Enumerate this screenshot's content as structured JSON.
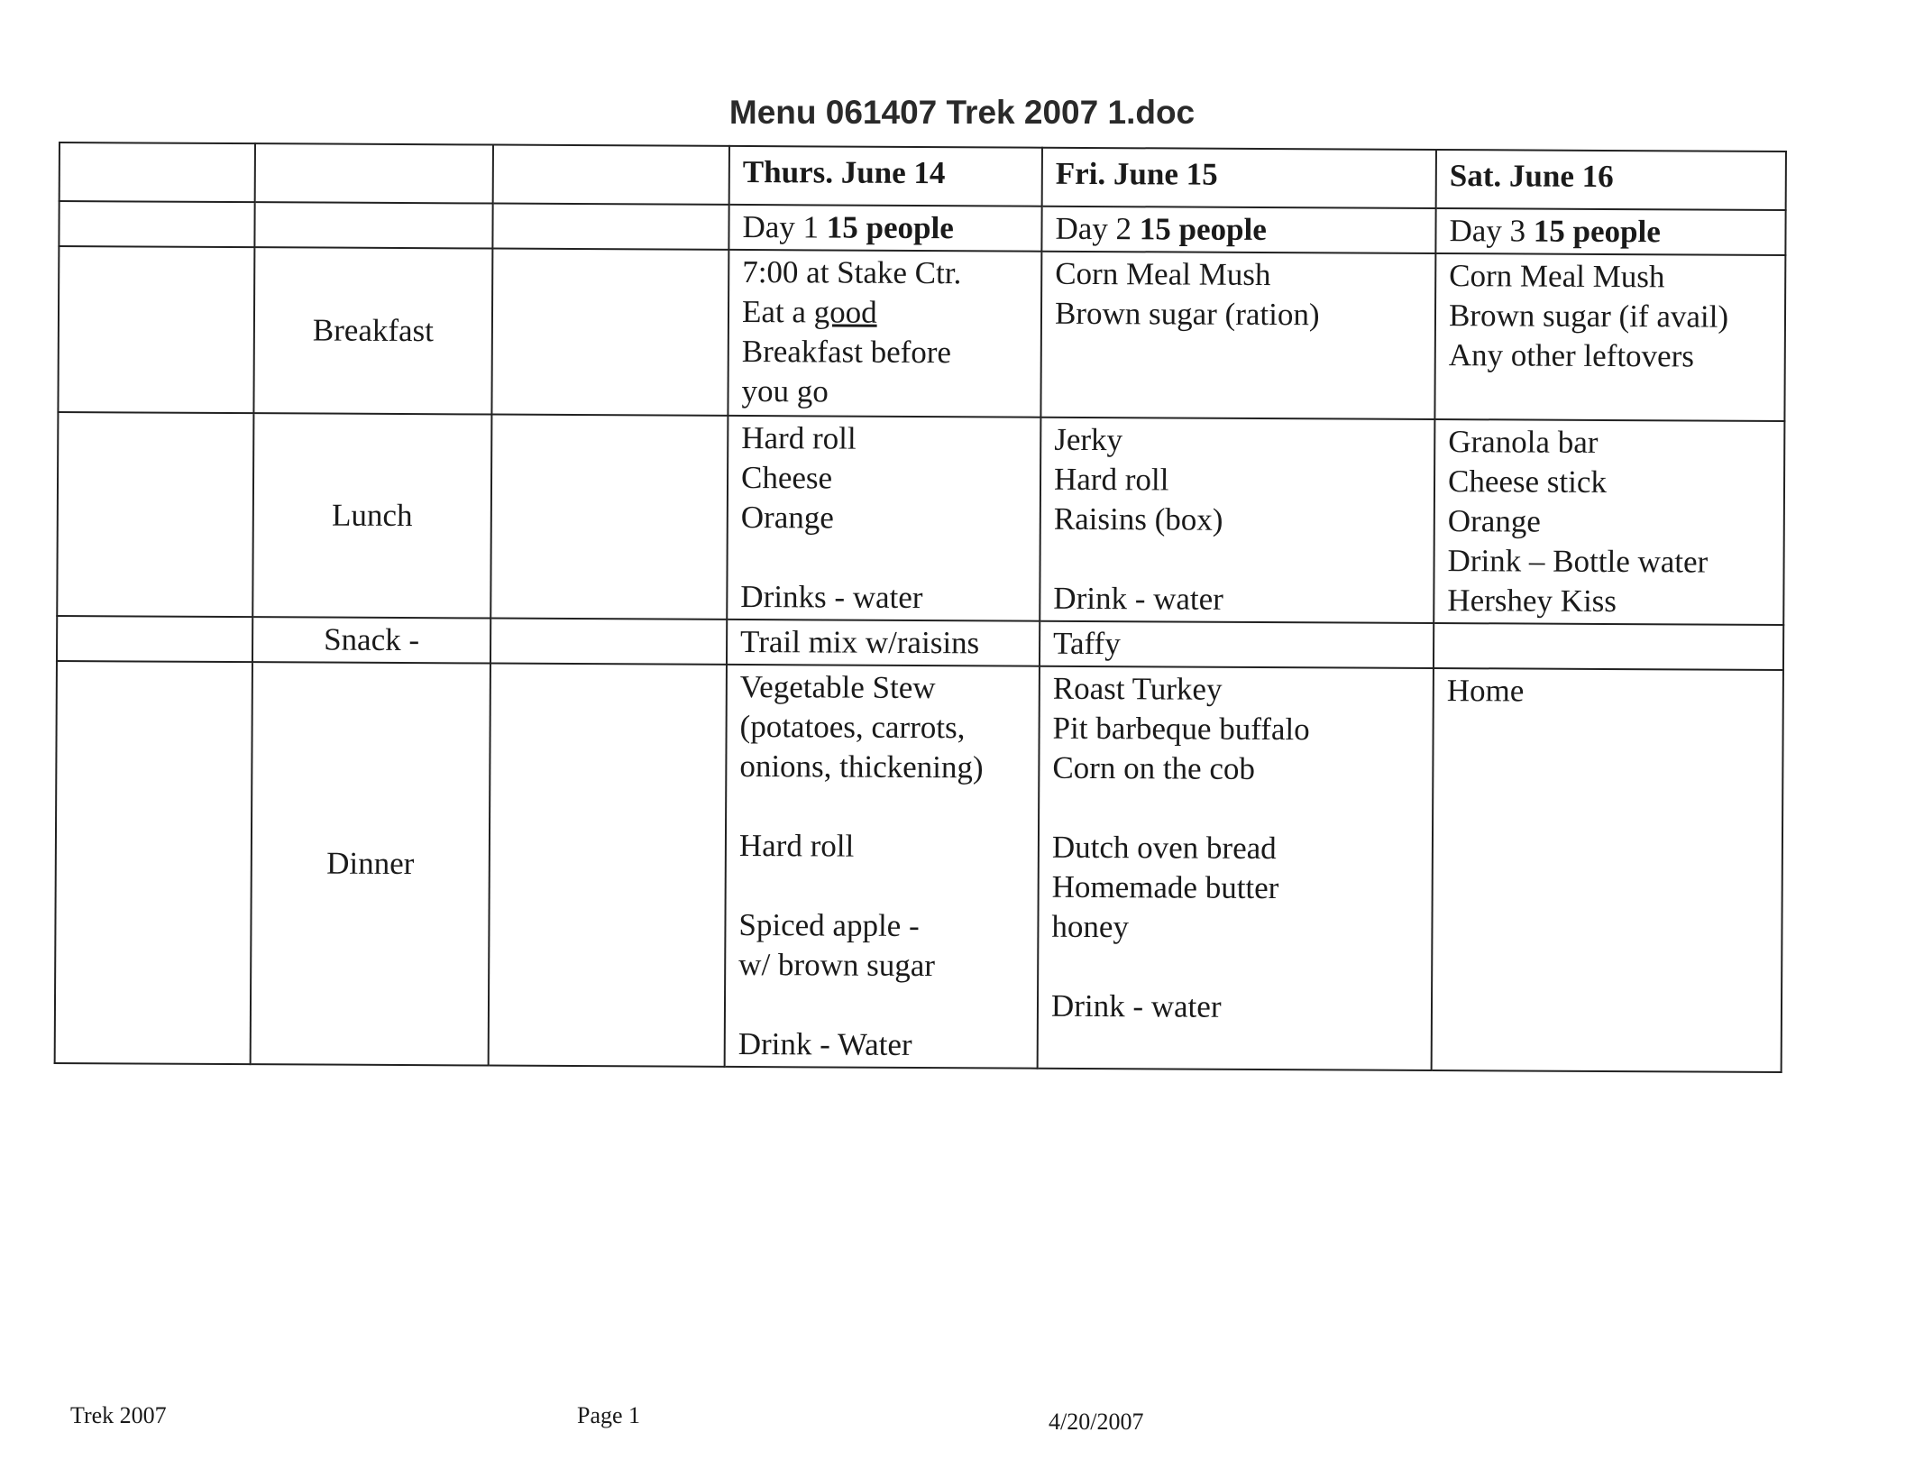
{
  "title": "Menu 061407 Trek 2007 1.doc",
  "days": [
    {
      "date": "Thurs. June 14",
      "day_label": "Day 1",
      "people": "15 people"
    },
    {
      "date": "Fri. June 15",
      "day_label": "Day 2",
      "people": "15 people"
    },
    {
      "date": "Sat. June 16",
      "day_label": "Day 3",
      "people": "15 people"
    }
  ],
  "meals": {
    "breakfast": {
      "label": "Breakfast",
      "d1": {
        "l1": "7:00 at Stake Ctr.",
        "l2a": "Eat a ",
        "l2b": "good",
        "l3": "Breakfast before",
        "l4": "you go"
      },
      "d2": [
        "Corn Meal Mush",
        "Brown sugar (ration)"
      ],
      "d3": [
        "Corn Meal Mush",
        "Brown sugar (if avail)",
        "Any other leftovers"
      ]
    },
    "lunch": {
      "label": "Lunch",
      "d1": [
        "Hard roll",
        "Cheese",
        "Orange",
        "Drinks - water"
      ],
      "d2": [
        "Jerky",
        "Hard roll",
        "Raisins (box)",
        "Drink - water"
      ],
      "d3": [
        "Granola bar",
        "Cheese stick",
        "Orange",
        "Drink – Bottle water",
        "Hershey Kiss"
      ]
    },
    "snack": {
      "label": "Snack -",
      "d1": "Trail mix w/raisins",
      "d2": "Taffy",
      "d3": ""
    },
    "dinner": {
      "label": "Dinner",
      "d1": [
        "Vegetable Stew",
        "(potatoes, carrots,",
        "onions, thickening)",
        "Hard roll",
        "Spiced apple -",
        "w/ brown sugar",
        "Drink - Water"
      ],
      "d2": [
        "Roast Turkey",
        "Pit barbeque buffalo",
        "Corn on the cob",
        "Dutch oven bread",
        "Homemade butter",
        "honey",
        "Drink - water"
      ],
      "d3": [
        "Home"
      ]
    }
  },
  "footer": {
    "left": "Trek 2007",
    "center": "Page 1",
    "right": "4/20/2007"
  }
}
